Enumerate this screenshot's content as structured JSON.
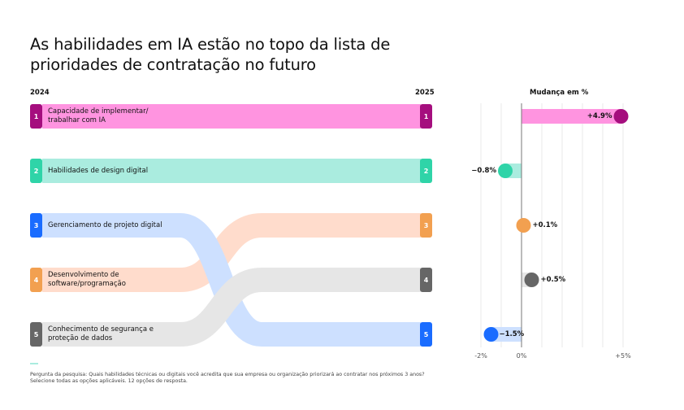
{
  "title": "As habilidades em IA estão no topo da lista de prioridades de contratação no futuro",
  "chart_data": [
    {
      "type": "bump",
      "left_label": "2024",
      "right_label": "2025",
      "items": [
        {
          "label": "Capacidade de implementar/ trabalhar com IA",
          "rank_2024": 1,
          "rank_2025": 1,
          "color": "#a50e7e",
          "light": "#ff94e0"
        },
        {
          "label": "Habilidades de design digital",
          "rank_2024": 2,
          "rank_2025": 2,
          "color": "#2fd4a8",
          "light": "#aaecdf"
        },
        {
          "label": "Gerenciamento de projeto digital",
          "rank_2024": 3,
          "rank_2025": 5,
          "color": "#1a6cff",
          "light": "#cde0ff"
        },
        {
          "label": "Desenvolvimento de software/programação",
          "rank_2024": 4,
          "rank_2025": 3,
          "color": "#f2a050",
          "light": "#ffdccc"
        },
        {
          "label": "Conhecimento de segurança e proteção de dados",
          "rank_2024": 5,
          "rank_2025": 4,
          "color": "#666666",
          "light": "#e6e6e6"
        }
      ]
    },
    {
      "type": "dot",
      "title": "Mudança em %",
      "xlim": [
        -2,
        5
      ],
      "ticks": [
        "-2%",
        "0%",
        "+5%"
      ],
      "tick_values": [
        -2,
        0,
        5
      ],
      "grid": true,
      "by_rank_2025": [
        {
          "value": 4.9,
          "label": "+4.9%",
          "color": "#a50e7e",
          "light": "#ff94e0"
        },
        {
          "value": -0.8,
          "label": "−0.8%",
          "color": "#2fd4a8",
          "light": "#aaecdf"
        },
        {
          "value": 0.1,
          "label": "+0.1%",
          "color": "#f2a050",
          "light": "#ffdccc"
        },
        {
          "value": 0.5,
          "label": "+0.5%",
          "color": "#666666",
          "light": "#e6e6e6"
        },
        {
          "value": -1.5,
          "label": "−1.5%",
          "color": "#1a6cff",
          "light": "#cde0ff"
        }
      ]
    }
  ],
  "note": "Pergunta da pesquisa: Quais habilidades técnicas ou digitais você acredita que sua empresa ou organização priorizará ao contratar nos próximos 3 anos? Selecione todas as opções aplicáveis. 12 opções de resposta."
}
